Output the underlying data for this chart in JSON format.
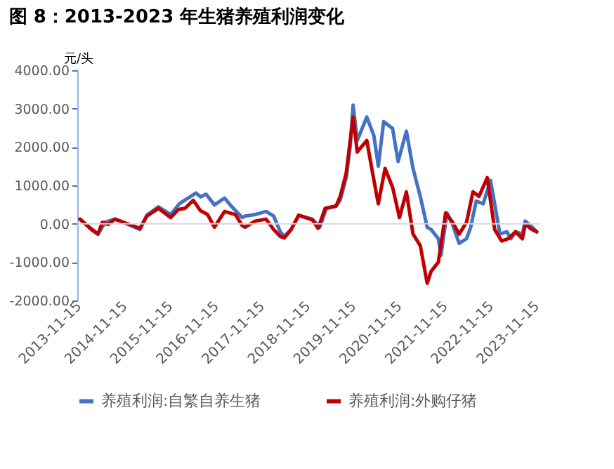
{
  "chart_data": {
    "type": "line",
    "title": "图 8：2013-2023 年生猪养殖利润变化",
    "ylabel": "元/头",
    "xlim": [
      "2013-11-05",
      "2023-12-10"
    ],
    "xticks": [
      "2013-11-15",
      "2014-11-15",
      "2015-11-15",
      "2016-11-15",
      "2017-11-15",
      "2018-11-15",
      "2019-11-15",
      "2020-11-15",
      "2021-11-15",
      "2022-11-15",
      "2023-11-15"
    ],
    "ylim": [
      -2000,
      4000
    ],
    "yticks": [
      {
        "value": -2000,
        "label": "-2000.00"
      },
      {
        "value": -1000,
        "label": "-1000.00"
      },
      {
        "value": 0,
        "label": "0.00"
      },
      {
        "value": 1000,
        "label": "1000.00"
      },
      {
        "value": 2000,
        "label": "2000.00"
      },
      {
        "value": 3000,
        "label": "3000.00"
      },
      {
        "value": 4000,
        "label": "4000.00"
      }
    ],
    "ref_lines": [
      {
        "axis": "y",
        "value": 0,
        "color": "#d9d9d9"
      }
    ],
    "legend": "bottom",
    "line_style": "solid",
    "series": [
      {
        "name": "养殖利润:自繁自养生猪",
        "color": "#4472c4",
        "x": [
          "2013-11-25",
          "2014-04-19",
          "2014-06-16",
          "2014-09-02",
          "2014-11-07",
          "2015-03-20",
          "2015-05-14",
          "2015-08-14",
          "2015-11-21",
          "2016-01-28",
          "2016-06-09",
          "2016-07-15",
          "2016-08-28",
          "2016-11-03",
          "2017-01-23",
          "2017-03-17",
          "2017-06-13",
          "2017-07-05",
          "2017-09-24",
          "2017-12-20",
          "2018-02-18",
          "2018-04-12",
          "2018-05-14",
          "2018-07-08",
          "2018-09-06",
          "2018-12-24",
          "2019-02-21",
          "2019-04-15",
          "2019-07-01",
          "2019-08-03",
          "2019-09-20",
          "2019-10-23",
          "2019-11-14",
          "2019-12-17",
          "2020-03-02",
          "2020-04-28",
          "2020-06-02",
          "2020-07-15",
          "2020-09-24",
          "2020-11-07",
          "2021-01-12",
          "2021-03-06",
          "2021-05-03",
          "2021-06-27",
          "2021-07-28",
          "2021-09-24",
          "2021-10-15",
          "2021-12-02",
          "2022-01-15",
          "2022-03-09",
          "2022-05-07",
          "2022-06-09",
          "2022-07-23",
          "2022-09-17",
          "2022-11-14",
          "2022-12-17",
          "2023-01-28",
          "2023-03-24",
          "2023-04-26",
          "2023-06-02",
          "2023-07-26",
          "2023-08-18",
          "2023-10-12",
          "2023-11-18"
        ],
        "values": [
          120,
          -270,
          40,
          120,
          40,
          -150,
          220,
          440,
          240,
          520,
          800,
          700,
          770,
          490,
          670,
          460,
          160,
          200,
          240,
          320,
          200,
          -210,
          -330,
          -150,
          220,
          120,
          -90,
          400,
          460,
          610,
          1200,
          2050,
          3090,
          2170,
          2780,
          2290,
          1500,
          2660,
          2480,
          1620,
          2410,
          1440,
          710,
          -90,
          -150,
          -390,
          -820,
          280,
          -20,
          -510,
          -390,
          -90,
          590,
          520,
          1130,
          520,
          -270,
          -210,
          -390,
          -210,
          -270,
          70,
          -90,
          -210
        ]
      },
      {
        "name": "养殖利润:外购仔猪",
        "color": "#c00000",
        "x": [
          "2013-11-28",
          "2014-02-25",
          "2014-04-19",
          "2014-05-25",
          "2014-07-08",
          "2014-09-02",
          "2014-11-07",
          "2015-03-20",
          "2015-05-14",
          "2015-08-14",
          "2015-11-21",
          "2016-01-19",
          "2016-03-13",
          "2016-05-18",
          "2016-07-15",
          "2016-09-09",
          "2016-11-03",
          "2017-01-23",
          "2017-04-19",
          "2017-06-13",
          "2017-07-05",
          "2017-09-24",
          "2017-12-20",
          "2018-02-18",
          "2018-04-12",
          "2018-05-14",
          "2018-07-08",
          "2018-09-06",
          "2018-12-24",
          "2019-02-07",
          "2019-04-05",
          "2019-07-01",
          "2019-08-03",
          "2019-09-20",
          "2019-11-14",
          "2019-12-17",
          "2020-03-02",
          "2020-04-28",
          "2020-06-02",
          "2020-07-26",
          "2020-09-24",
          "2020-11-18",
          "2021-01-12",
          "2021-03-06",
          "2021-05-03",
          "2021-06-27",
          "2021-07-28",
          "2021-09-24",
          "2021-11-21",
          "2022-01-15",
          "2022-03-09",
          "2022-05-07",
          "2022-06-27",
          "2022-08-14",
          "2022-10-19",
          "2022-12-17",
          "2023-02-11",
          "2023-04-05",
          "2023-06-02",
          "2023-07-26",
          "2023-08-18",
          "2023-10-12",
          "2023-11-18"
        ],
        "values": [
          120,
          -150,
          -270,
          40,
          -20,
          120,
          40,
          -120,
          200,
          400,
          160,
          370,
          400,
          610,
          340,
          240,
          -90,
          320,
          240,
          -50,
          -90,
          70,
          120,
          -150,
          -330,
          -370,
          -150,
          220,
          100,
          -120,
          400,
          460,
          710,
          1320,
          2780,
          1870,
          2170,
          1130,
          520,
          1440,
          950,
          160,
          830,
          -270,
          -570,
          -1550,
          -1240,
          -1000,
          280,
          40,
          -270,
          40,
          830,
          710,
          1200,
          -150,
          -450,
          -390,
          -210,
          -390,
          -20,
          -150,
          -210
        ]
      }
    ]
  }
}
